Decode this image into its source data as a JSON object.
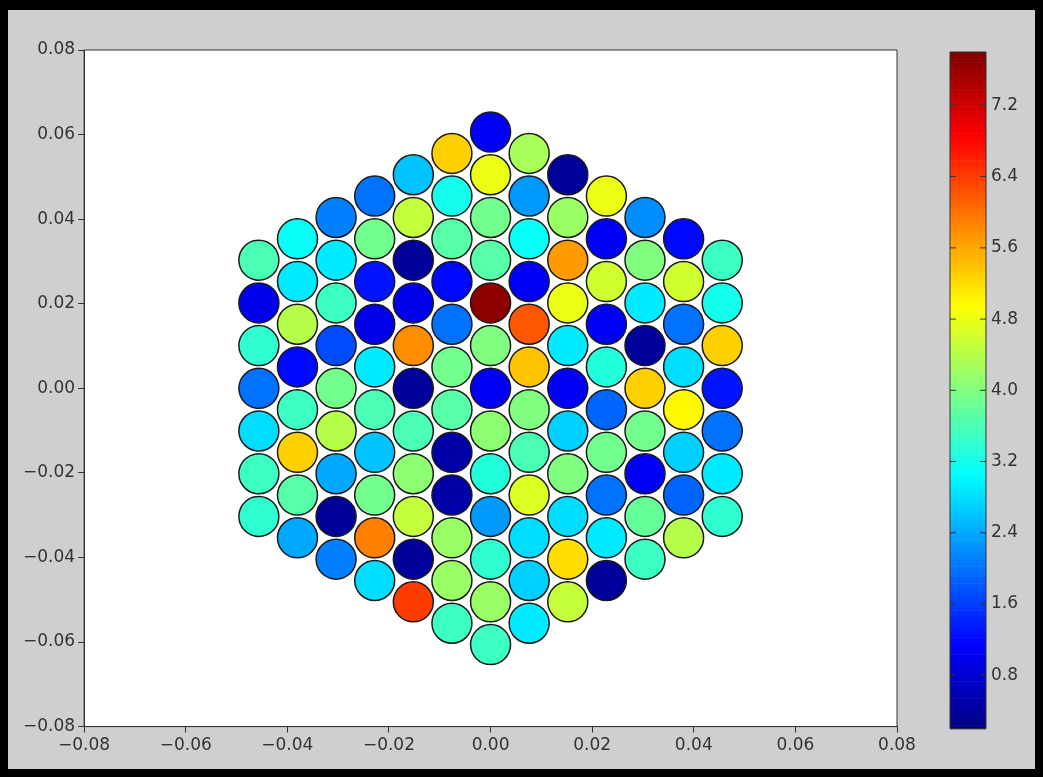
{
  "chart_data": {
    "type": "scatter",
    "marker": "circle",
    "grid": false,
    "legend": false,
    "xlim": [
      -0.08,
      0.08
    ],
    "ylim": [
      -0.08,
      0.08
    ],
    "xticks": [
      {
        "value": -0.08,
        "label": "−0.08"
      },
      {
        "value": -0.06,
        "label": "−0.06"
      },
      {
        "value": -0.04,
        "label": "−0.04"
      },
      {
        "value": -0.02,
        "label": "−0.02"
      },
      {
        "value": 0,
        "label": "0.00"
      },
      {
        "value": 0.02,
        "label": "0.02"
      },
      {
        "value": 0.04,
        "label": "0.04"
      },
      {
        "value": 0.06,
        "label": "0.06"
      },
      {
        "value": 0.08,
        "label": "0.08"
      }
    ],
    "yticks": [
      {
        "value": -0.08,
        "label": "−0.08"
      },
      {
        "value": -0.06,
        "label": "−0.06"
      },
      {
        "value": -0.04,
        "label": "−0.04"
      },
      {
        "value": -0.02,
        "label": "−0.02"
      },
      {
        "value": 0,
        "label": "0.00"
      },
      {
        "value": 0.02,
        "label": "0.02"
      },
      {
        "value": 0.04,
        "label": "0.04"
      },
      {
        "value": 0.06,
        "label": "0.06"
      },
      {
        "value": 0.08,
        "label": "0.08"
      }
    ],
    "clim": [
      0.2,
      7.8
    ],
    "cticks": [
      0.8,
      1.6,
      2.4,
      3.2,
      {
        "value": 4,
        "label": "4.0"
      },
      4.8,
      5.6,
      6.4,
      7.2
    ],
    "x": [
      -0.0456,
      -0.0456,
      -0.0456,
      -0.0456,
      -0.0456,
      -0.0456,
      -0.0456,
      -0.038,
      -0.038,
      -0.038,
      -0.038,
      -0.038,
      -0.038,
      -0.038,
      -0.038,
      -0.0304,
      -0.0304,
      -0.0304,
      -0.0304,
      -0.0304,
      -0.0304,
      -0.0304,
      -0.0304,
      -0.0304,
      -0.0228,
      -0.0228,
      -0.0228,
      -0.0228,
      -0.0228,
      -0.0228,
      -0.0228,
      -0.0228,
      -0.0228,
      -0.0228,
      -0.0152,
      -0.0152,
      -0.0152,
      -0.0152,
      -0.0152,
      -0.0152,
      -0.0152,
      -0.0152,
      -0.0152,
      -0.0152,
      -0.0152,
      -0.0076,
      -0.0076,
      -0.0076,
      -0.0076,
      -0.0076,
      -0.0076,
      -0.0076,
      -0.0076,
      -0.0076,
      -0.0076,
      -0.0076,
      -0.0076,
      0,
      0,
      0,
      0,
      0,
      0,
      0,
      0,
      0,
      0,
      0,
      0,
      0,
      0.0076,
      0.0076,
      0.0076,
      0.0076,
      0.0076,
      0.0076,
      0.0076,
      0.0076,
      0.0076,
      0.0076,
      0.0076,
      0.0076,
      0.0152,
      0.0152,
      0.0152,
      0.0152,
      0.0152,
      0.0152,
      0.0152,
      0.0152,
      0.0152,
      0.0152,
      0.0152,
      0.0228,
      0.0228,
      0.0228,
      0.0228,
      0.0228,
      0.0228,
      0.0228,
      0.0228,
      0.0228,
      0.0228,
      0.0304,
      0.0304,
      0.0304,
      0.0304,
      0.0304,
      0.0304,
      0.0304,
      0.0304,
      0.0304,
      0.038,
      0.038,
      0.038,
      0.038,
      0.038,
      0.038,
      0.038,
      0.038,
      0.0456,
      0.0456,
      0.0456,
      0.0456,
      0.0456,
      0.0456,
      0.0456
    ],
    "values": [
      0.0303,
      0.0202,
      0.0101,
      0,
      -0.0101,
      -0.0202,
      -0.0303,
      0.03535,
      0.02525,
      0.01515,
      0.00505,
      -0.00505,
      -0.01515,
      -0.02525,
      -0.03535,
      0.0404,
      0.0303,
      0.0202,
      0.0101,
      0,
      -0.0101,
      -0.0202,
      -0.0303,
      -0.0404,
      0.04545,
      0.03535,
      0.02525,
      0.01515,
      0.00505,
      -0.00505,
      -0.01515,
      -0.02525,
      -0.03535,
      -0.04545,
      0.0505,
      0.0404,
      0.0303,
      0.0202,
      0.0101,
      0,
      -0.0101,
      -0.0202,
      -0.0303,
      -0.0404,
      -0.0505,
      0.05555,
      0.04545,
      0.03535,
      0.02525,
      0.01515,
      0.00505,
      -0.00505,
      -0.01515,
      -0.02525,
      -0.03535,
      -0.04545,
      -0.05555,
      0.0606,
      0.0505,
      0.0404,
      0.0303,
      0.0202,
      0.0101,
      0,
      -0.0101,
      -0.0202,
      -0.0303,
      -0.0404,
      -0.0505,
      -0.0606,
      0.05555,
      0.04545,
      0.03535,
      0.02525,
      0.01515,
      0.00505,
      -0.00505,
      -0.01515,
      -0.02525,
      -0.03535,
      -0.04545,
      -0.05555,
      0.0505,
      0.0404,
      0.0303,
      0.0202,
      0.0101,
      0,
      -0.0101,
      -0.0202,
      -0.0303,
      -0.0404,
      -0.0505,
      0.04545,
      0.03535,
      0.02525,
      0.01515,
      0.00505,
      -0.00505,
      -0.01515,
      -0.02525,
      -0.03535,
      -0.04545,
      0.0404,
      0.0303,
      0.0202,
      0.0101,
      0,
      -0.0101,
      -0.0202,
      -0.0303,
      -0.0404,
      0.03535,
      0.02525,
      0.01515,
      0.00505,
      -0.00505,
      -0.01515,
      -0.02525,
      -0.03535,
      0.0303,
      0.0202,
      0.0101,
      0,
      -0.0101,
      -0.0202,
      -0.0303
    ],
    "cvalues": [
      3.6,
      1.0,
      3.4,
      2.0,
      2.8,
      3.5,
      3.4,
      3.1,
      2.9,
      4.4,
      1.2,
      3.5,
      5.3,
      3.7,
      2.4,
      2.1,
      2.9,
      3.5,
      1.7,
      3.9,
      4.4,
      2.4,
      0.4,
      2.1,
      2.0,
      3.9,
      1.3,
      1.0,
      2.9,
      3.6,
      2.6,
      3.9,
      5.9,
      2.8,
      2.6,
      4.5,
      0.4,
      1.0,
      5.8,
      0.4,
      3.6,
      4.1,
      4.5,
      0.4,
      6.4,
      5.3,
      3.2,
      3.7,
      1.2,
      2.0,
      3.9,
      3.7,
      0.5,
      0.5,
      4.2,
      4.2,
      3.5,
      1.1,
      4.8,
      3.9,
      3.7,
      7.7,
      4.0,
      1.1,
      4.1,
      3.3,
      2.3,
      3.4,
      4.2,
      3.5,
      4.3,
      2.3,
      3.1,
      1.1,
      6.2,
      5.4,
      4.0,
      3.6,
      4.7,
      2.8,
      2.7,
      2.9,
      0.4,
      4.2,
      5.7,
      4.8,
      2.9,
      1.1,
      2.7,
      4.0,
      2.8,
      5.2,
      4.5,
      4.8,
      1.1,
      4.6,
      1.1,
      3.3,
      1.9,
      3.9,
      2.0,
      2.9,
      0.4,
      2.2,
      4.0,
      2.9,
      0.4,
      5.3,
      3.9,
      1.1,
      3.8,
      3.5,
      1.2,
      4.6,
      2.0,
      2.8,
      5.0,
      2.7,
      1.9,
      4.4,
      3.5,
      3.2,
      5.3,
      1.3,
      2.0,
      2.9,
      3.4
    ]
  }
}
